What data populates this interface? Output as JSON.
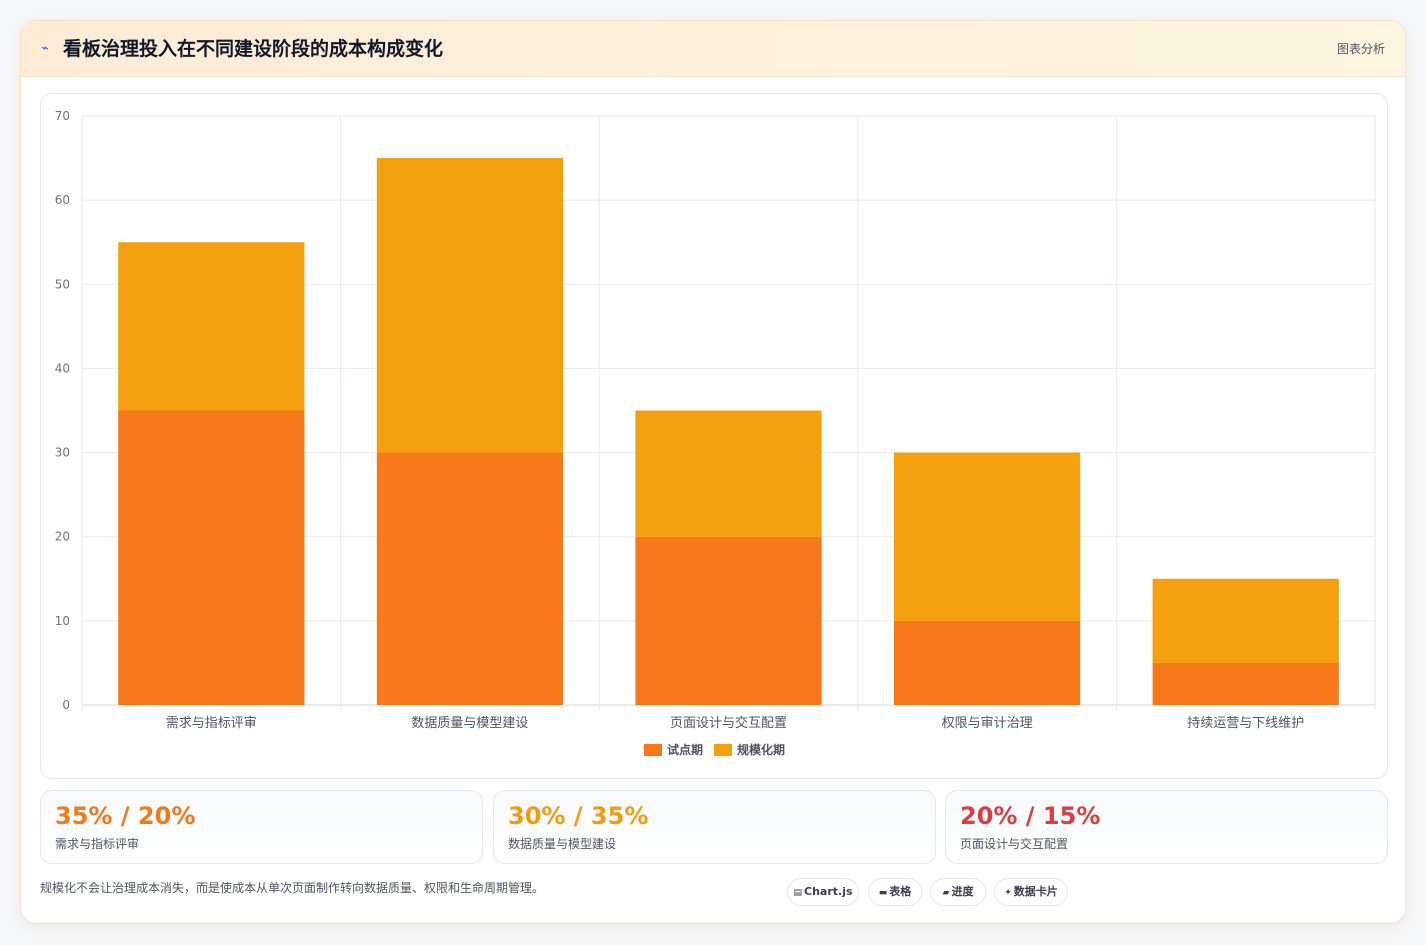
{
  "header": {
    "icon": "chart-icon",
    "title": "看板治理投入在不同建设阶段的成本构成变化",
    "tag": "图表分析"
  },
  "colors": {
    "pilot": "#f7771b",
    "scale": "#f49f0d",
    "stat1": "#f07a17",
    "stat2": "#f19c0f",
    "stat3": "#df3d3d"
  },
  "chart_data": {
    "type": "bar",
    "stacked": true,
    "categories": [
      "需求与指标评审",
      "数据质量与模型建设",
      "页面设计与交互配置",
      "权限与审计治理",
      "持续运营与下线维护"
    ],
    "series": [
      {
        "name": "试点期",
        "values": [
          35,
          30,
          20,
          10,
          5
        ]
      },
      {
        "name": "规模化期",
        "values": [
          20,
          35,
          15,
          20,
          10
        ]
      }
    ],
    "ylim": [
      0,
      70
    ],
    "yticks": [
      0,
      10,
      20,
      30,
      40,
      50,
      60,
      70
    ],
    "grid": true,
    "legend_position": "bottom"
  },
  "stats": [
    {
      "value": "35% / 20%",
      "label": "需求与指标评审"
    },
    {
      "value": "30% / 35%",
      "label": "数据质量与模型建设"
    },
    {
      "value": "20% / 15%",
      "label": "页面设计与交互配置"
    }
  ],
  "footnote": "规模化不会让治理成本消失，而是使成本从单次页面制作转向数据质量、权限和生命周期管理。",
  "tags": [
    {
      "icon": "chart-icon",
      "label": "Chart.js"
    },
    {
      "icon": "table-icon",
      "label": "表格"
    },
    {
      "icon": "progress-icon",
      "label": "进度"
    },
    {
      "icon": "card-icon",
      "label": "数据卡片"
    }
  ]
}
